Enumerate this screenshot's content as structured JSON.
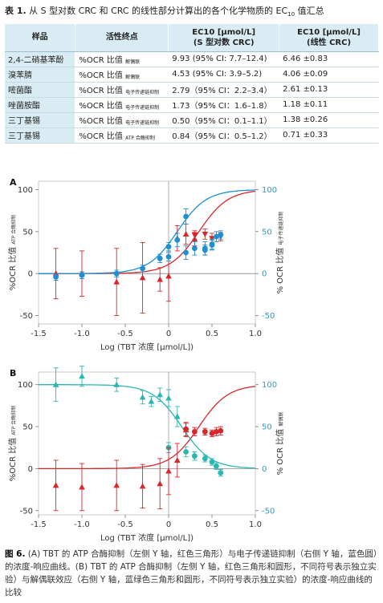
{
  "table": {
    "title_label": "表 1.",
    "title_text": "从 S 型对数 CRC 和 CRC 的线性部分计算出的各个化学物质的 EC",
    "title_sub": "10",
    "title_tail": " 值汇总",
    "headers": {
      "sample": "样品",
      "endpoint": "活性终点",
      "ec_s": "EC10 [μmol/L]",
      "ec_s_sub": "(S 型对数 CRC)",
      "ec_lin": "EC10 [μmol/L]",
      "ec_lin_sub": "(线性 CRC)"
    },
    "rows": [
      {
        "sample": "2,4-二硝基苯酚",
        "endpoint": "%OCR 比值",
        "endpoint_sub": "解偶联",
        "ec_s": "9.93 (95% CI: 7.7–12.4)",
        "ec_lin": "6.46 ±0.83"
      },
      {
        "sample": "溴苯腈",
        "endpoint": "%OCR 比值",
        "endpoint_sub": "解偶联",
        "ec_s": "4.53 (95% CI: 3.9–5.2)",
        "ec_lin": "4.06 ±0.09"
      },
      {
        "sample": "嘧菌酯",
        "endpoint": "%OCR 比值",
        "endpoint_sub": "电子传递链抑制",
        "ec_s": "2.79（95% CI：2.2–3.4）",
        "ec_lin": "2.61 ±0.13"
      },
      {
        "sample": "唑菌胺酯",
        "endpoint": "%OCR 比值",
        "endpoint_sub": "电子传递链抑制",
        "ec_s": "1.73（95% CI：1.6–1.8）",
        "ec_lin": "1.18 ±0.11"
      },
      {
        "sample": "三丁基锡",
        "endpoint": "%OCR 比值",
        "endpoint_sub": "电子传递链抑制",
        "ec_s": "0.50（95% CI：0.1–1.1）",
        "ec_lin": "1.38 ±0.26"
      },
      {
        "sample": "三丁基锡",
        "endpoint": "%OCR 比值",
        "endpoint_sub": "ATP 合酶抑制",
        "ec_s": "0.84（95% CI：0.5–1.2）",
        "ec_lin": "0.71 ±0.33"
      }
    ]
  },
  "figure_caption": {
    "label": "图 6.",
    "text": "(A) TBT 的 ATP 合酶抑制（左侧 Y 轴，红色三角形）与电子传递链抑制（右侧 Y 轴，蓝色圆）的浓度-响应曲线。(B) TBT 的 ATP 合酶抑制（左侧 Y 轴，红色三角形和圆形，不同符号表示独立实验）与解偶联效应（右侧 Y 轴，蓝绿色三角形和圆形，不同符号表示独立实验）的浓度-响应曲线的比较"
  },
  "colors": {
    "red": "#d9262b",
    "blue": "#1e8fd0",
    "teal": "#29b7b0",
    "header_bg": "#d9ecf3",
    "axis_right_text": "#2a9bc4"
  },
  "chart_data": [
    {
      "panel": "A",
      "type": "scatter",
      "xlabel": "Log (TBT 浓度 [μmol/L])",
      "ylabel_left": "%OCR 比值",
      "ylabel_left_sub": "ATP 合酶抑制",
      "ylabel_right": "% OCR 比值",
      "ylabel_right_sub": "电子传递链抑制",
      "xlim": [
        -1.5,
        1.0
      ],
      "xticks": [
        -1.5,
        -1.0,
        -0.5,
        0.0,
        0.5,
        1.0
      ],
      "xtick_labels": [
        "-1.5",
        "-1.0",
        "-0.5",
        "0",
        "0.5",
        "1.0"
      ],
      "ylim_left": [
        -60,
        110
      ],
      "yticks_left": [
        -50,
        0,
        50,
        100
      ],
      "ylim_right": [
        -60,
        110
      ],
      "yticks_right": [
        -50,
        0,
        50,
        100
      ],
      "series": [
        {
          "color": "#d9262b",
          "marker": "triangle",
          "axis": "left",
          "x": [
            -1.3,
            -1.0,
            -0.6,
            -0.3,
            -0.1,
            0.0,
            0.1,
            0.2,
            0.3
          ],
          "y": [
            0,
            0,
            -10,
            -5,
            -7,
            -3,
            42,
            47,
            41
          ],
          "err": [
            30,
            27,
            40,
            42,
            14,
            30,
            15,
            12,
            8
          ]
        },
        {
          "color": "#d9262b",
          "marker": "triangle-down",
          "axis": "left",
          "x": [
            0.3,
            0.42,
            0.5,
            0.6
          ],
          "y": [
            46,
            47,
            42,
            44
          ],
          "err": [
            5,
            6,
            6,
            5
          ]
        },
        {
          "color": "#1e8fd0",
          "marker": "circle",
          "axis": "right",
          "x": [
            -1.3,
            -1.0,
            -0.6,
            -0.3,
            -0.1,
            0.0,
            0.1,
            0.2,
            0.3,
            0.42,
            0.5,
            0.55,
            0.6
          ],
          "y": [
            -4,
            -2,
            0,
            6,
            18,
            32,
            40,
            68,
            30,
            30,
            34,
            44,
            46
          ],
          "err": [
            4,
            4,
            4,
            4,
            5,
            5,
            8,
            9,
            8,
            8,
            6,
            6,
            5
          ]
        },
        {
          "color": "#1e8fd0",
          "marker": "circle",
          "axis": "right",
          "x": [
            0.0,
            0.2,
            0.42,
            0.5
          ],
          "y": [
            20,
            25,
            28,
            35
          ],
          "err": [
            5,
            8,
            6,
            6
          ]
        }
      ],
      "curves": [
        {
          "color": "#d9262b",
          "axis": "left",
          "logEC50": 0.35,
          "hill": 2.6,
          "bottom": 0,
          "top": 100
        },
        {
          "color": "#1e8fd0",
          "axis": "right",
          "logEC50": 0.1,
          "hill": 2.6,
          "bottom": 0,
          "top": 100
        }
      ]
    },
    {
      "panel": "B",
      "type": "scatter",
      "xlabel": "Log (TBT 浓度 [μmol/L])",
      "ylabel_left": "%OCR 比值",
      "ylabel_left_sub": "ATP 合酶抑制",
      "ylabel_right": "% OCR 比值",
      "ylabel_right_sub": "解偶联",
      "xlim": [
        -1.5,
        1.0
      ],
      "xticks": [
        -1.5,
        -1.0,
        -0.5,
        0.0,
        0.5,
        1.0
      ],
      "xtick_labels": [
        "-1.5",
        "-1.0",
        "-0.5",
        "0",
        "0.5",
        "1.0"
      ],
      "ylim_left": [
        -55,
        115
      ],
      "yticks_left": [
        -50,
        0,
        50,
        100
      ],
      "ylim_right": [
        -55,
        115
      ],
      "yticks_right": [
        -50,
        0,
        50,
        100
      ],
      "series": [
        {
          "color": "#29b7b0",
          "marker": "triangle",
          "axis": "right",
          "x": [
            -1.3,
            -1.0,
            -0.6,
            -0.3,
            -0.2,
            -0.1,
            0.0,
            0.1
          ],
          "y": [
            100,
            110,
            100,
            85,
            80,
            88,
            84,
            62
          ],
          "err": [
            20,
            12,
            8,
            8,
            6,
            8,
            10,
            12
          ]
        },
        {
          "color": "#29b7b0",
          "marker": "circle",
          "axis": "right",
          "x": [
            0.0,
            0.2,
            0.3,
            0.42,
            0.5,
            0.55,
            0.6
          ],
          "y": [
            25,
            20,
            15,
            12,
            8,
            3,
            -5
          ],
          "err": [
            6,
            6,
            5,
            4,
            4,
            4,
            4
          ]
        },
        {
          "color": "#d9262b",
          "marker": "triangle",
          "axis": "left",
          "x": [
            -1.3,
            -1.0,
            -0.6,
            -0.3,
            -0.1,
            0.0,
            0.1,
            0.2
          ],
          "y": [
            -20,
            -22,
            -20,
            -21,
            -18,
            -3,
            10,
            46
          ],
          "err": [
            30,
            28,
            30,
            26,
            30,
            28,
            20,
            8
          ]
        },
        {
          "color": "#d9262b",
          "marker": "circle",
          "axis": "left",
          "x": [
            0.2,
            0.3,
            0.42,
            0.5,
            0.55,
            0.6
          ],
          "y": [
            47,
            44,
            44,
            42,
            44,
            45
          ],
          "err": [
            8,
            5,
            4,
            4,
            5,
            5
          ]
        }
      ],
      "curves": [
        {
          "color": "#d9262b",
          "axis": "left",
          "logEC50": 0.35,
          "hill": 2.6,
          "bottom": 0,
          "top": 100
        },
        {
          "color": "#29b7b0",
          "axis": "right",
          "logEC50": 0.15,
          "hill": 2.6,
          "bottom": 100,
          "top": 0
        }
      ]
    }
  ]
}
